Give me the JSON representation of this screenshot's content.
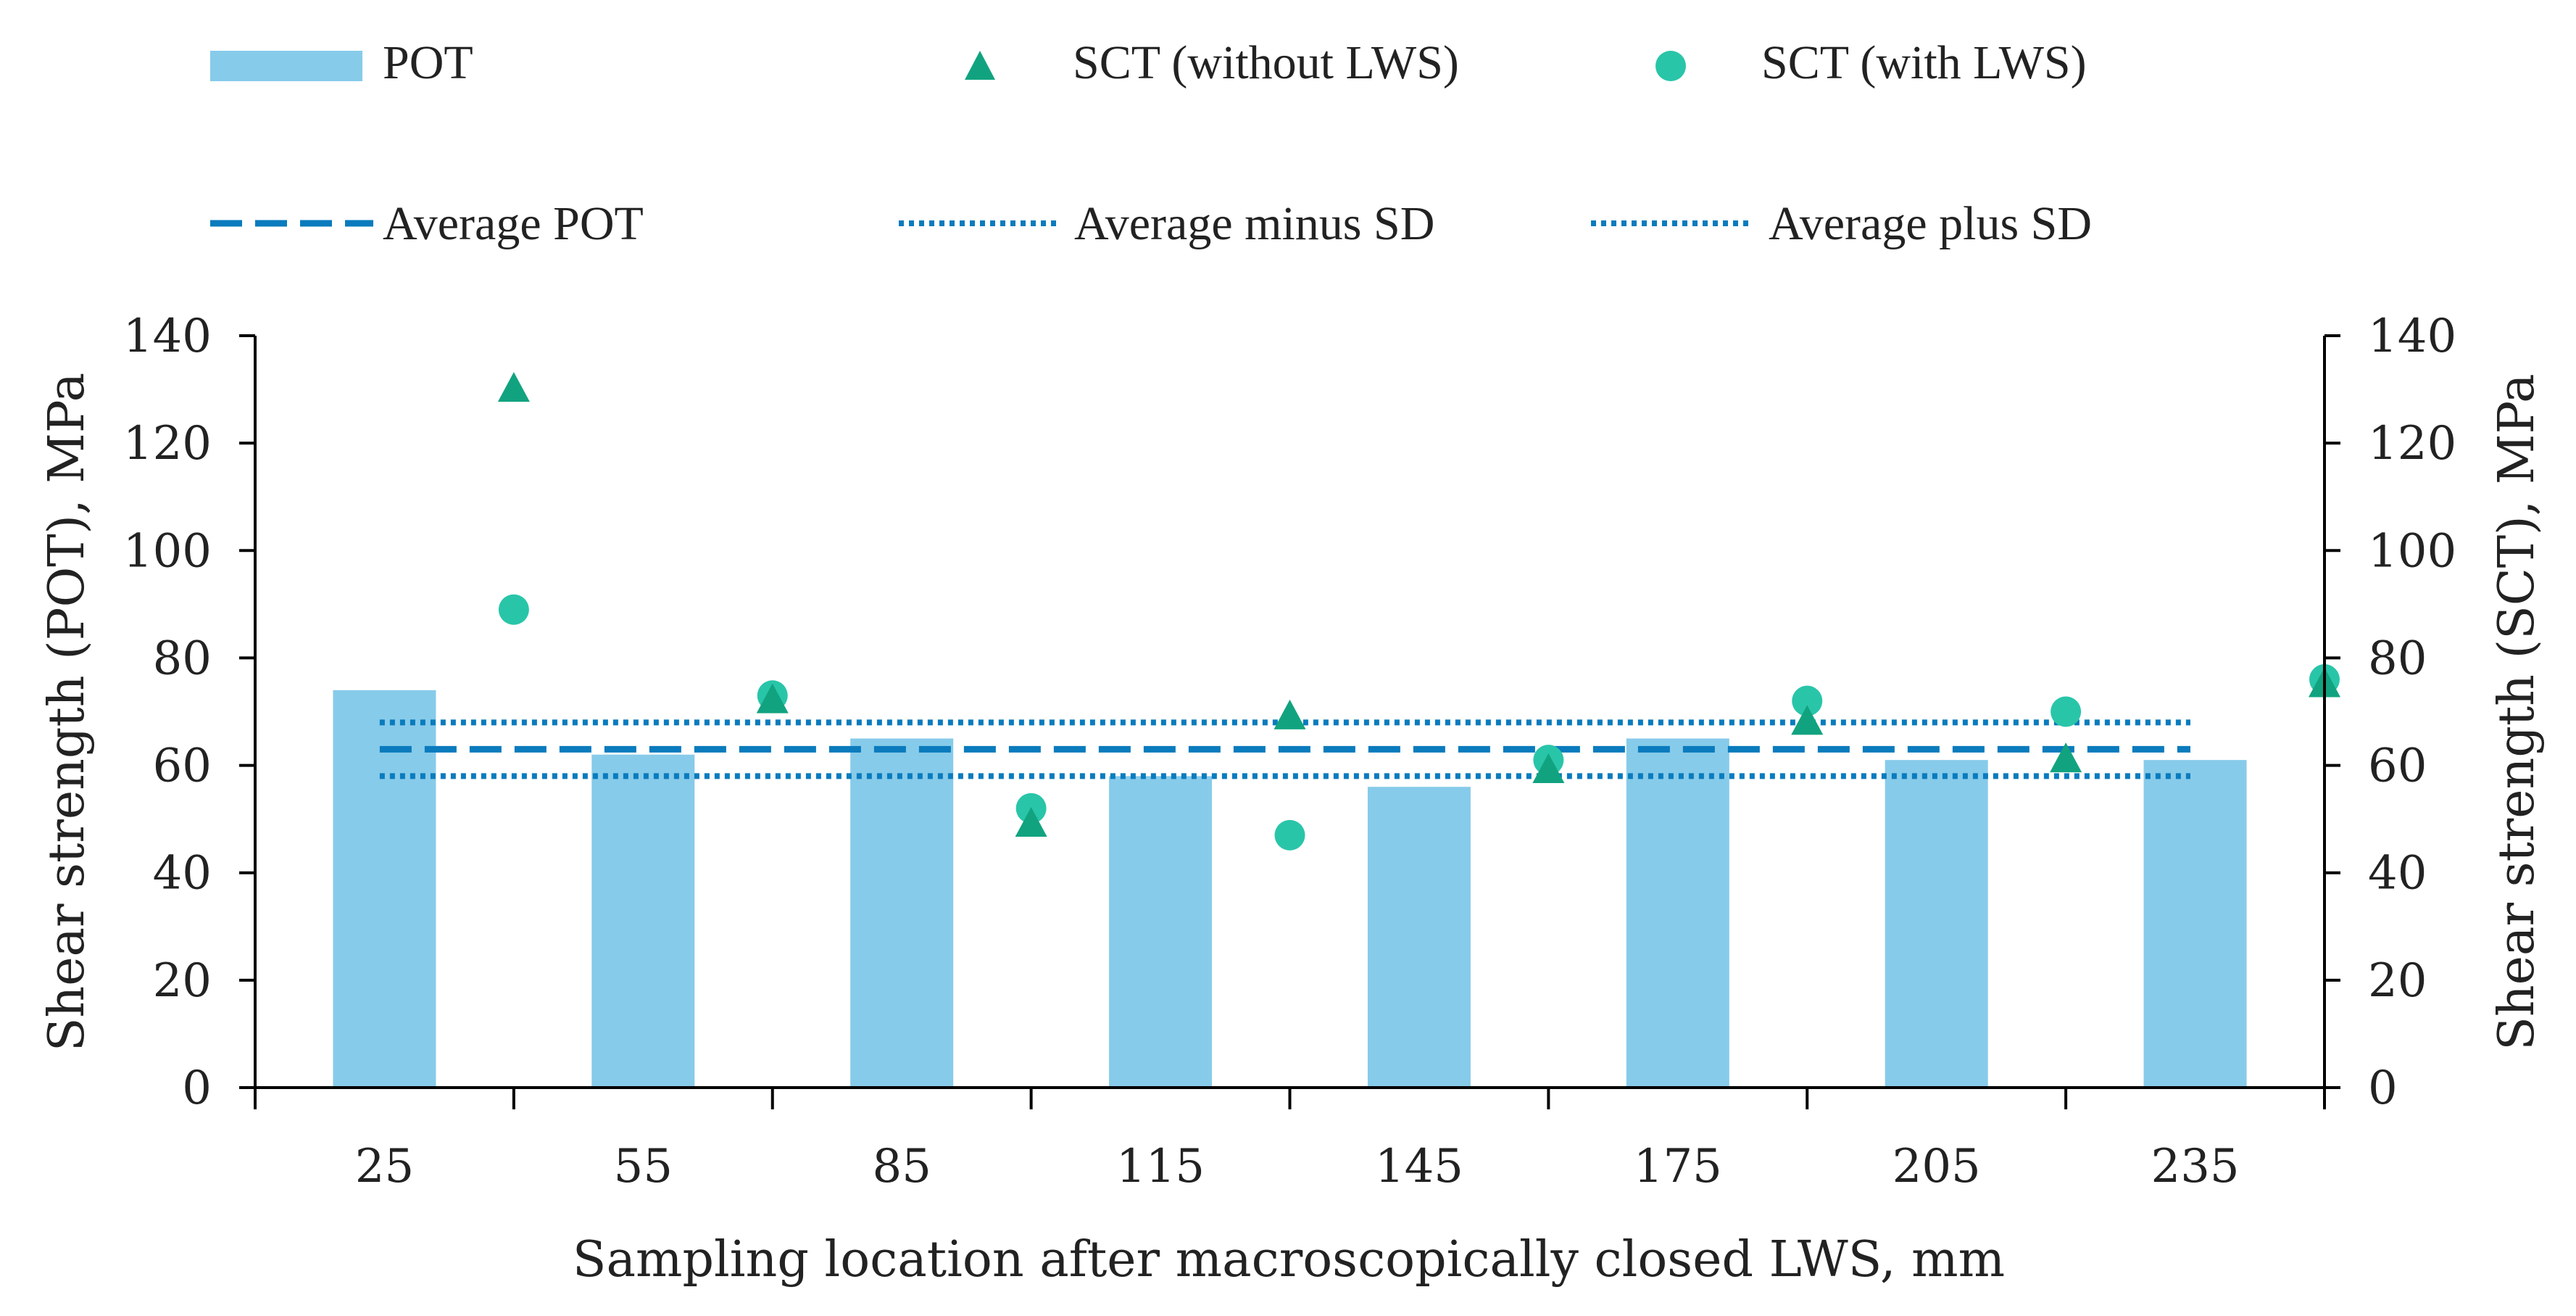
{
  "chart_data": {
    "type": "bar",
    "title": "",
    "xlabel": "Sampling location after macroscopically closed LWS, mm",
    "ylabel_left": "Shear strength (POT),  MPa",
    "ylabel_right": "Shear strength (SCT), MPa",
    "ylim": [
      0,
      140
    ],
    "yticks": [
      0,
      20,
      40,
      60,
      80,
      100,
      120,
      140
    ],
    "categories": [
      "25",
      "55",
      "85",
      "115",
      "145",
      "175",
      "205",
      "235"
    ],
    "pot_values": [
      74,
      62,
      65,
      58,
      56,
      65,
      61,
      61
    ],
    "sct_x": [
      40,
      70,
      100,
      130,
      160,
      190,
      220,
      250
    ],
    "series": [
      {
        "name": "POT",
        "kind": "bar",
        "values": [
          74,
          62,
          65,
          58,
          56,
          65,
          61,
          61
        ]
      },
      {
        "name": "SCT (without LWS)",
        "kind": "triangle",
        "values": [
          130,
          72,
          49,
          69,
          59,
          68,
          61,
          75
        ]
      },
      {
        "name": "SCT (with LWS)",
        "kind": "circle",
        "values": [
          89,
          73,
          52,
          47,
          61,
          72,
          70,
          76
        ]
      },
      {
        "name": "Average POT",
        "kind": "dashed",
        "value": 63
      },
      {
        "name": "Average minus SD",
        "kind": "dotted",
        "value": 58
      },
      {
        "name": "Average plus SD",
        "kind": "dotted",
        "value": 68
      }
    ],
    "legend": {
      "placement": "top",
      "items": [
        "POT",
        "SCT (without LWS)",
        "SCT (with LWS)",
        "Average POT",
        "Average minus SD",
        "Average plus SD"
      ]
    },
    "colors": {
      "bar": "#87CBEA",
      "triangle": "#11A37F",
      "circle": "#29C5A9",
      "line": "#0A7BBD",
      "axis": "#000000"
    }
  }
}
